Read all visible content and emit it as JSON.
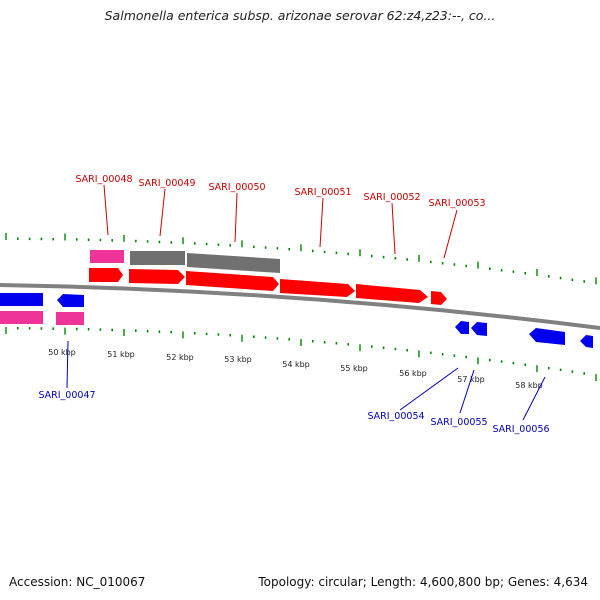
{
  "title": "Salmonella enterica subsp. arizonae serovar 62:z4,z23:--, co...",
  "footer": {
    "accession": "Accession: NC_010067",
    "summary": "Topology: circular; Length: 4,600,800 bp; Genes: 4,634"
  },
  "colors": {
    "forward_cds": "#ff0000",
    "reverse_cds": "#0000ee",
    "forward_rna": "#ee3399",
    "reverse_rna": "#ee3399",
    "other": "#707070",
    "backbone": "#808080",
    "ticks": "#008800",
    "forward_label": "#cc0000",
    "reverse_label": "#0000bb"
  },
  "kbp_labels": [
    "50 kbp",
    "51 kbp",
    "52 kbp",
    "53 kbp",
    "54 kbp",
    "55 kbp",
    "56 kbp",
    "57 kbp",
    "58 kbp"
  ],
  "forward_genes": [
    {
      "label": "SARI_00048"
    },
    {
      "label": "SARI_00049"
    },
    {
      "label": "SARI_00050"
    },
    {
      "label": "SARI_00051"
    },
    {
      "label": "SARI_00052"
    },
    {
      "label": "SARI_00053"
    }
  ],
  "reverse_genes": [
    {
      "label": "SARI_00047"
    },
    {
      "label": "SARI_00054"
    },
    {
      "label": "SARI_00055"
    },
    {
      "label": "SARI_00056"
    }
  ]
}
